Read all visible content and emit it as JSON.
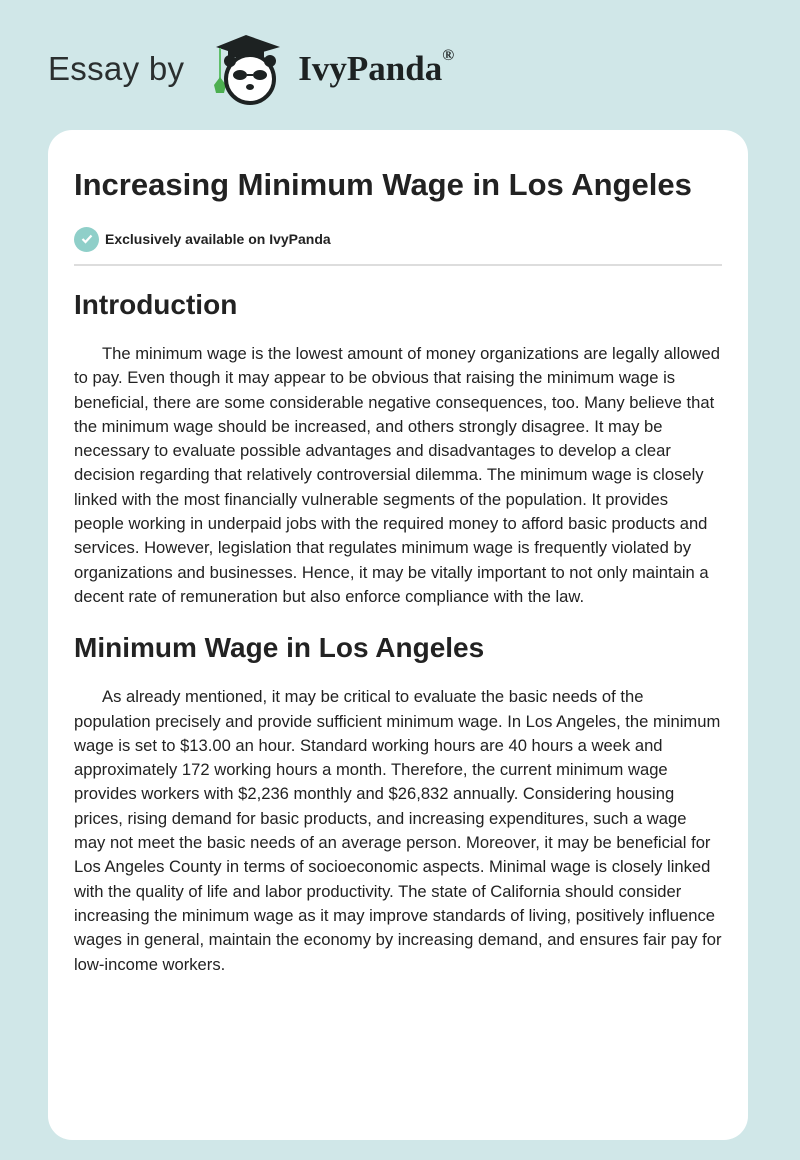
{
  "header": {
    "prefix": "Essay by",
    "brand": "IvyPanda",
    "brand_mark": "®",
    "logo_icon": "panda-graduate-logo-icon"
  },
  "article": {
    "title": "Increasing Minimum Wage in Los Angeles",
    "badge": {
      "icon": "check-circle-icon",
      "text": "Exclusively available on IvyPanda",
      "color": "#8fcfc9"
    },
    "sections": [
      {
        "heading": "Introduction",
        "paragraph": "The minimum wage is the lowest amount of money organizations are legally allowed to pay. Even though it may appear to be obvious that raising the minimum wage is beneficial, there are some considerable negative consequences, too. Many believe that the minimum wage should be increased, and others strongly disagree. It may be necessary to evaluate possible advantages and disadvantages to develop a clear decision regarding that relatively controversial dilemma. The minimum wage is closely linked with the most financially vulnerable segments of the population. It provides people working in underpaid jobs with the required money to afford basic products and services. However, legislation that regulates minimum wage is frequently violated by organizations and businesses. Hence, it may be vitally important to not only maintain a decent rate of remuneration but also enforce compliance with the law."
      },
      {
        "heading": "Minimum Wage in Los Angeles",
        "paragraph": "As already mentioned, it may be critical to evaluate the basic needs of the population precisely and provide sufficient minimum wage. In Los Angeles, the minimum wage is set to $13.00 an hour. Standard working hours are 40 hours a week and approximately 172 working hours a month. Therefore, the current minimum wage provides workers with $2,236 monthly and $26,832 annually. Considering housing prices, rising demand for basic products, and increasing expenditures, such a wage may not meet the basic needs of an average person. Moreover, it may be beneficial for Los Angeles County in terms of socioeconomic aspects. Minimal wage is closely linked with the quality of life and labor productivity. The state of California should consider increasing the minimum wage as it may improve standards of living, positively influence wages in general, maintain the economy by increasing demand, and ensures fair pay for low-income workers."
      }
    ]
  }
}
